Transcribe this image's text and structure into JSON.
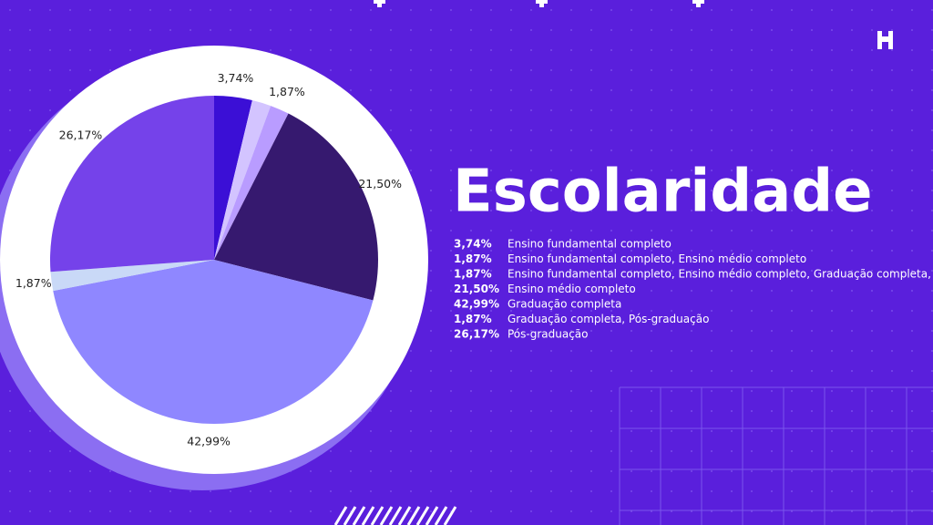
{
  "chart_data": {
    "type": "pie",
    "title": "Escolaridade",
    "categories": [
      "Ensino fundamental completo",
      "Ensino fundamental completo, Ensino médio completo",
      "Ensino fundamental completo, Ensino médio completo, Graduação completa,",
      "Ensino médio completo",
      "Graduação completa",
      "Graduação completa, Pós-graduação",
      "Pós-graduação"
    ],
    "values": [
      3.74,
      1.87,
      1.87,
      21.5,
      42.99,
      1.87,
      26.17
    ],
    "value_labels": [
      "3,74%",
      "1,87%",
      "1,87%",
      "21,50%",
      "42,99%",
      "1,87%",
      "26,17%"
    ],
    "colors": [
      "#3b0fd6",
      "#d3c4ff",
      "#b99cff",
      "#36196f",
      "#8f87ff",
      "#c9d9f7",
      "#7542ea"
    ]
  }
}
